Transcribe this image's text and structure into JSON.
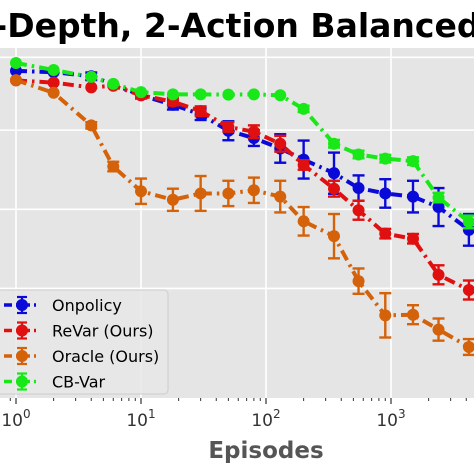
{
  "chart_data": {
    "type": "line",
    "title": "-Depth, 2-Action Balanced",
    "xlabel": "Episodes",
    "ylabel": "",
    "xscale": "log",
    "xlim": [
      0.8,
      4500
    ],
    "ylim": [
      0.0,
      1.0
    ],
    "grid": true,
    "legend_position": "lower-left",
    "x_ticks": [
      {
        "value": 1,
        "base": "10",
        "exp": "0"
      },
      {
        "value": 10,
        "base": "10",
        "exp": "1"
      },
      {
        "value": 100,
        "base": "10",
        "exp": "2"
      },
      {
        "value": 1000,
        "base": "10",
        "exp": "3"
      }
    ],
    "series": [
      {
        "name": "Onpolicy",
        "color": "#0a0ad8",
        "points": [
          {
            "x": 1,
            "y": 0.907,
            "err": 0.006
          },
          {
            "x": 2,
            "y": 0.903,
            "err": 0.006
          },
          {
            "x": 4,
            "y": 0.89,
            "err": 0.012
          },
          {
            "x": 6,
            "y": 0.865,
            "err": 0.008
          },
          {
            "x": 10,
            "y": 0.83,
            "err": 0.01
          },
          {
            "x": 18,
            "y": 0.8,
            "err": 0.015
          },
          {
            "x": 30,
            "y": 0.77,
            "err": 0.018
          },
          {
            "x": 50,
            "y": 0.718,
            "err": 0.03
          },
          {
            "x": 80,
            "y": 0.695,
            "err": 0.025
          },
          {
            "x": 130,
            "y": 0.662,
            "err": 0.045
          },
          {
            "x": 200,
            "y": 0.627,
            "err": 0.06
          },
          {
            "x": 350,
            "y": 0.584,
            "err": 0.065
          },
          {
            "x": 550,
            "y": 0.537,
            "err": 0.04
          },
          {
            "x": 900,
            "y": 0.52,
            "err": 0.045
          },
          {
            "x": 1500,
            "y": 0.51,
            "err": 0.05
          },
          {
            "x": 2400,
            "y": 0.477,
            "err": 0.06
          },
          {
            "x": 4200,
            "y": 0.405,
            "err": 0.05
          }
        ]
      },
      {
        "name": "ReVar (Ours)",
        "color": "#e01010",
        "points": [
          {
            "x": 1,
            "y": 0.877,
            "err": 0.006
          },
          {
            "x": 2,
            "y": 0.87,
            "err": 0.006
          },
          {
            "x": 4,
            "y": 0.855,
            "err": 0.008
          },
          {
            "x": 6,
            "y": 0.86,
            "err": 0.008
          },
          {
            "x": 10,
            "y": 0.83,
            "err": 0.01
          },
          {
            "x": 18,
            "y": 0.81,
            "err": 0.012
          },
          {
            "x": 30,
            "y": 0.78,
            "err": 0.015
          },
          {
            "x": 50,
            "y": 0.73,
            "err": 0.015
          },
          {
            "x": 80,
            "y": 0.715,
            "err": 0.02
          },
          {
            "x": 130,
            "y": 0.677,
            "err": 0.025
          },
          {
            "x": 200,
            "y": 0.61,
            "err": 0.015
          },
          {
            "x": 350,
            "y": 0.535,
            "err": 0.025
          },
          {
            "x": 550,
            "y": 0.467,
            "err": 0.03
          },
          {
            "x": 900,
            "y": 0.393,
            "err": 0.015
          },
          {
            "x": 1500,
            "y": 0.377,
            "err": 0.015
          },
          {
            "x": 2400,
            "y": 0.263,
            "err": 0.03
          },
          {
            "x": 4200,
            "y": 0.215,
            "err": 0.03
          }
        ]
      },
      {
        "name": "Oracle (Ours)",
        "color": "#d4620a",
        "points": [
          {
            "x": 1,
            "y": 0.878,
            "err": 0.006
          },
          {
            "x": 2,
            "y": 0.838,
            "err": 0.008
          },
          {
            "x": 4,
            "y": 0.735,
            "err": 0.01
          },
          {
            "x": 6,
            "y": 0.605,
            "err": 0.015
          },
          {
            "x": 10,
            "y": 0.527,
            "err": 0.04
          },
          {
            "x": 18,
            "y": 0.5,
            "err": 0.035
          },
          {
            "x": 30,
            "y": 0.52,
            "err": 0.055
          },
          {
            "x": 50,
            "y": 0.52,
            "err": 0.04
          },
          {
            "x": 80,
            "y": 0.53,
            "err": 0.04
          },
          {
            "x": 130,
            "y": 0.51,
            "err": 0.05
          },
          {
            "x": 200,
            "y": 0.432,
            "err": 0.045
          },
          {
            "x": 350,
            "y": 0.385,
            "err": 0.07
          },
          {
            "x": 550,
            "y": 0.243,
            "err": 0.04
          },
          {
            "x": 900,
            "y": 0.135,
            "err": 0.07
          },
          {
            "x": 1500,
            "y": 0.137,
            "err": 0.03
          },
          {
            "x": 2400,
            "y": 0.09,
            "err": 0.035
          },
          {
            "x": 4200,
            "y": 0.035,
            "err": 0.025
          }
        ]
      },
      {
        "name": "CB-Var",
        "color": "#18e818",
        "points": [
          {
            "x": 1,
            "y": 0.932,
            "err": 0.006
          },
          {
            "x": 2,
            "y": 0.91,
            "err": 0.006
          },
          {
            "x": 4,
            "y": 0.888,
            "err": 0.008
          },
          {
            "x": 6,
            "y": 0.866,
            "err": 0.008
          },
          {
            "x": 10,
            "y": 0.84,
            "err": 0.008
          },
          {
            "x": 18,
            "y": 0.833,
            "err": 0.008
          },
          {
            "x": 30,
            "y": 0.833,
            "err": 0.008
          },
          {
            "x": 50,
            "y": 0.832,
            "err": 0.008
          },
          {
            "x": 80,
            "y": 0.833,
            "err": 0.008
          },
          {
            "x": 130,
            "y": 0.83,
            "err": 0.008
          },
          {
            "x": 200,
            "y": 0.787,
            "err": 0.01
          },
          {
            "x": 350,
            "y": 0.677,
            "err": 0.012
          },
          {
            "x": 550,
            "y": 0.643,
            "err": 0.012
          },
          {
            "x": 900,
            "y": 0.63,
            "err": 0.012
          },
          {
            "x": 1500,
            "y": 0.622,
            "err": 0.012
          },
          {
            "x": 2400,
            "y": 0.507,
            "err": 0.015
          },
          {
            "x": 4200,
            "y": 0.43,
            "err": 0.02
          }
        ]
      }
    ]
  }
}
